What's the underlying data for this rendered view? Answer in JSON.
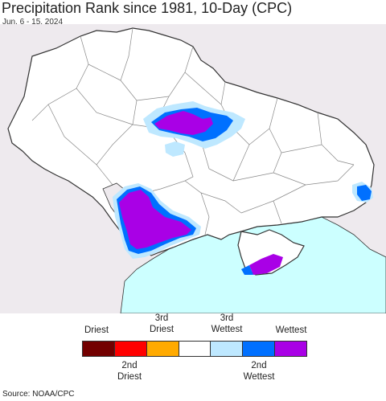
{
  "header": {
    "title": "Precipitation Rank since 1981, 10-Day (CPC)",
    "date_range": "Jun. 6 - 15, 2024"
  },
  "map": {
    "region": "Ukraine",
    "colors": {
      "land_outside": "#eeeaee",
      "land_inside": "#ffffff",
      "sea": "#ccffff",
      "border": "#333333",
      "oblast_border": "#888888"
    }
  },
  "legend": {
    "top_labels": [
      {
        "text": "Driest"
      },
      {
        "text": "3rd\nDriest"
      },
      {
        "text": "3rd\nWettest"
      },
      {
        "text": "Wettest"
      }
    ],
    "bottom_labels": [
      {
        "text": "2nd\nDriest"
      },
      {
        "text": "2nd\nWettest"
      }
    ],
    "swatches": [
      {
        "name": "driest",
        "color": "#730000"
      },
      {
        "name": "2nd-driest",
        "color": "#ff0000"
      },
      {
        "name": "3rd-driest",
        "color": "#ffaa00"
      },
      {
        "name": "normal",
        "color": "#ffffff"
      },
      {
        "name": "3rd-wettest",
        "color": "#bee8ff"
      },
      {
        "name": "2nd-wettest",
        "color": "#0070ff"
      },
      {
        "name": "wettest",
        "color": "#a900e6"
      }
    ]
  },
  "footer": {
    "source": "Source: NOAA/CPC"
  }
}
